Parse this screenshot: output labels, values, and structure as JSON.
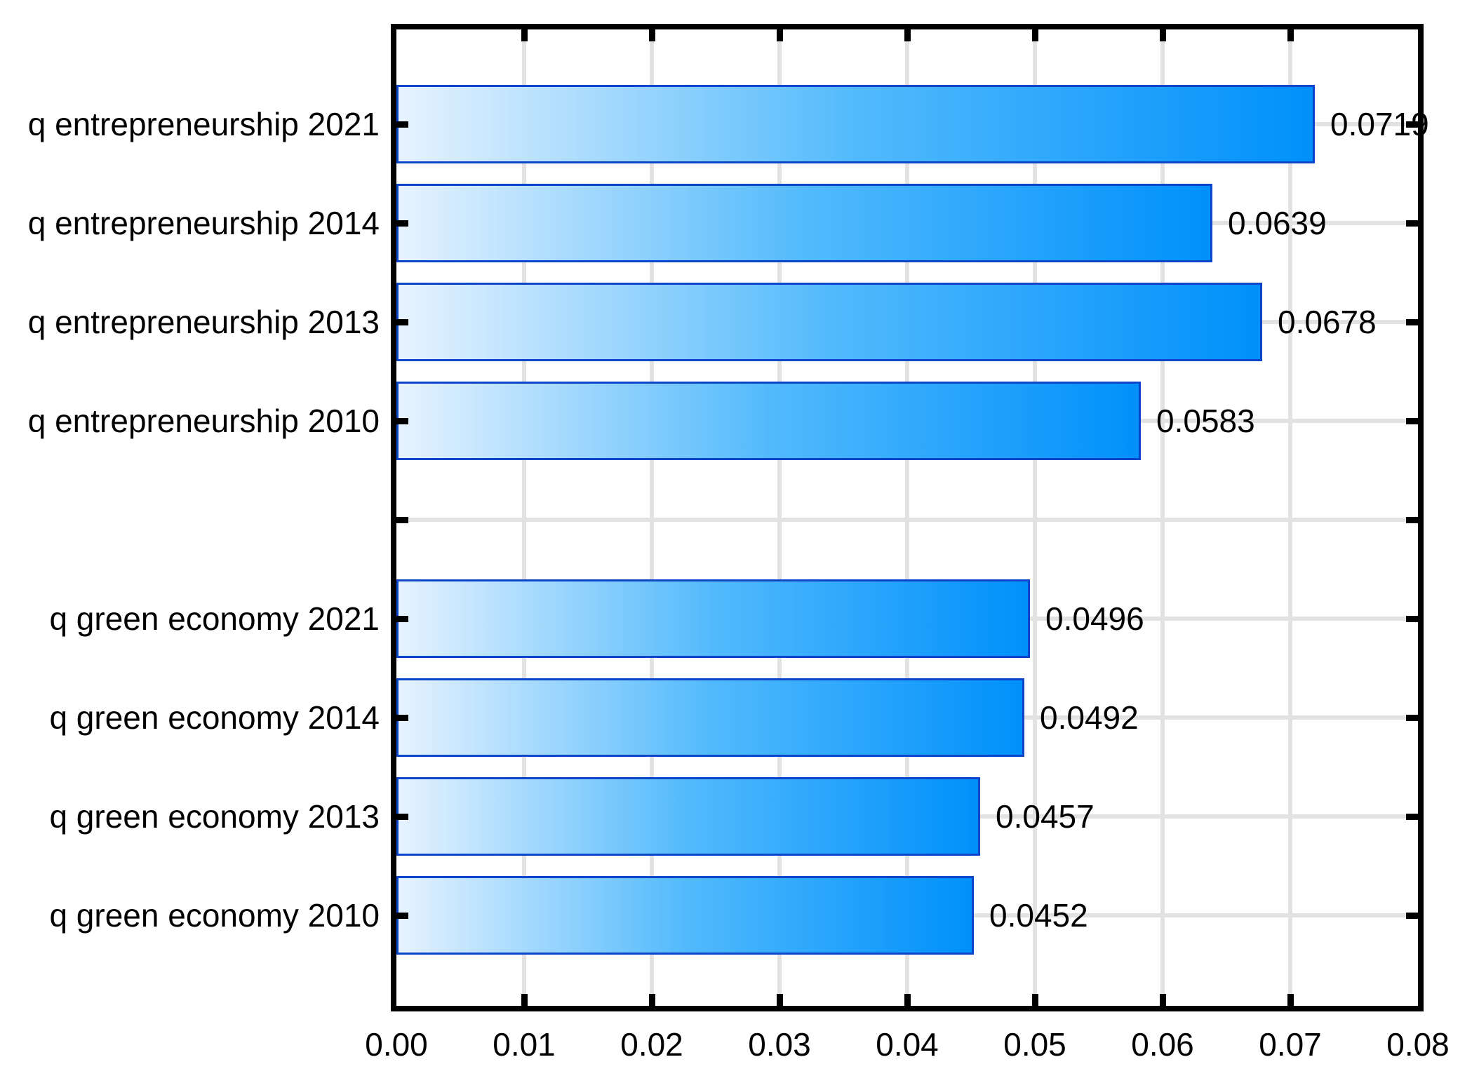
{
  "chart_data": {
    "type": "bar",
    "orientation": "horizontal",
    "title": "",
    "xlabel": "",
    "ylabel": "",
    "xlim": [
      0,
      0.08
    ],
    "x_tick_step": 0.01,
    "x_tick_labels": [
      "0.00",
      "0.01",
      "0.02",
      "0.03",
      "0.04",
      "0.05",
      "0.06",
      "0.07",
      "0.08"
    ],
    "grid": true,
    "legend": false,
    "categories": [
      "q entrepreneurship 2021",
      "q entrepreneurship 2014",
      "q entrepreneurship 2013",
      "q entrepreneurship 2010",
      "",
      "q green economy 2021",
      "q green economy 2014",
      "q green economy 2013",
      "q green economy 2010"
    ],
    "values": [
      0.0719,
      0.0639,
      0.0678,
      0.0583,
      null,
      0.0496,
      0.0492,
      0.0457,
      0.0452
    ],
    "value_labels": [
      "0.0719",
      "0.0639",
      "0.0678",
      "0.0583",
      "",
      "0.0496",
      "0.0492",
      "0.0457",
      "0.0452"
    ],
    "colors": {
      "bar_gradient_start": "#e7f3fe",
      "bar_gradient_mid": "#52bafc",
      "bar_gradient_end": "#0090fb",
      "bar_border": "#0b45c9",
      "gridline": "#e2e2e2",
      "frame": "#000000",
      "text": "#000000",
      "background": "#ffffff"
    }
  }
}
